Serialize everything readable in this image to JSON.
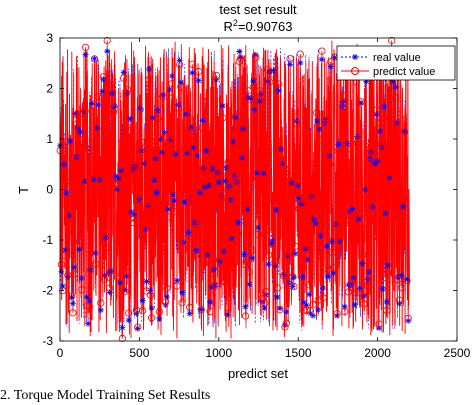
{
  "chart_data": {
    "type": "line",
    "title": "test set result",
    "subtitle_prefix": "R",
    "subtitle_sup": "2",
    "subtitle_value": "=0.90763",
    "xlabel": "predict set",
    "ylabel": "T",
    "xlim": [
      0,
      2500
    ],
    "ylim": [
      -3,
      3
    ],
    "xticks": [
      "0",
      "500",
      "1000",
      "1500",
      "2000",
      "2500"
    ],
    "yticks": [
      "-3",
      "-2",
      "-1",
      "0",
      "1",
      "2",
      "3"
    ],
    "grid": false,
    "legend_position": "top-right",
    "n_points": 2200,
    "series": [
      {
        "name": "real value",
        "color": "#0000ff",
        "marker": "asterisk",
        "linestyle": "dotted"
      },
      {
        "name": "predict value",
        "color": "#ff0000",
        "marker": "circle",
        "linestyle": "solid"
      }
    ]
  },
  "caption": "2. Torque Model Training Set Results"
}
